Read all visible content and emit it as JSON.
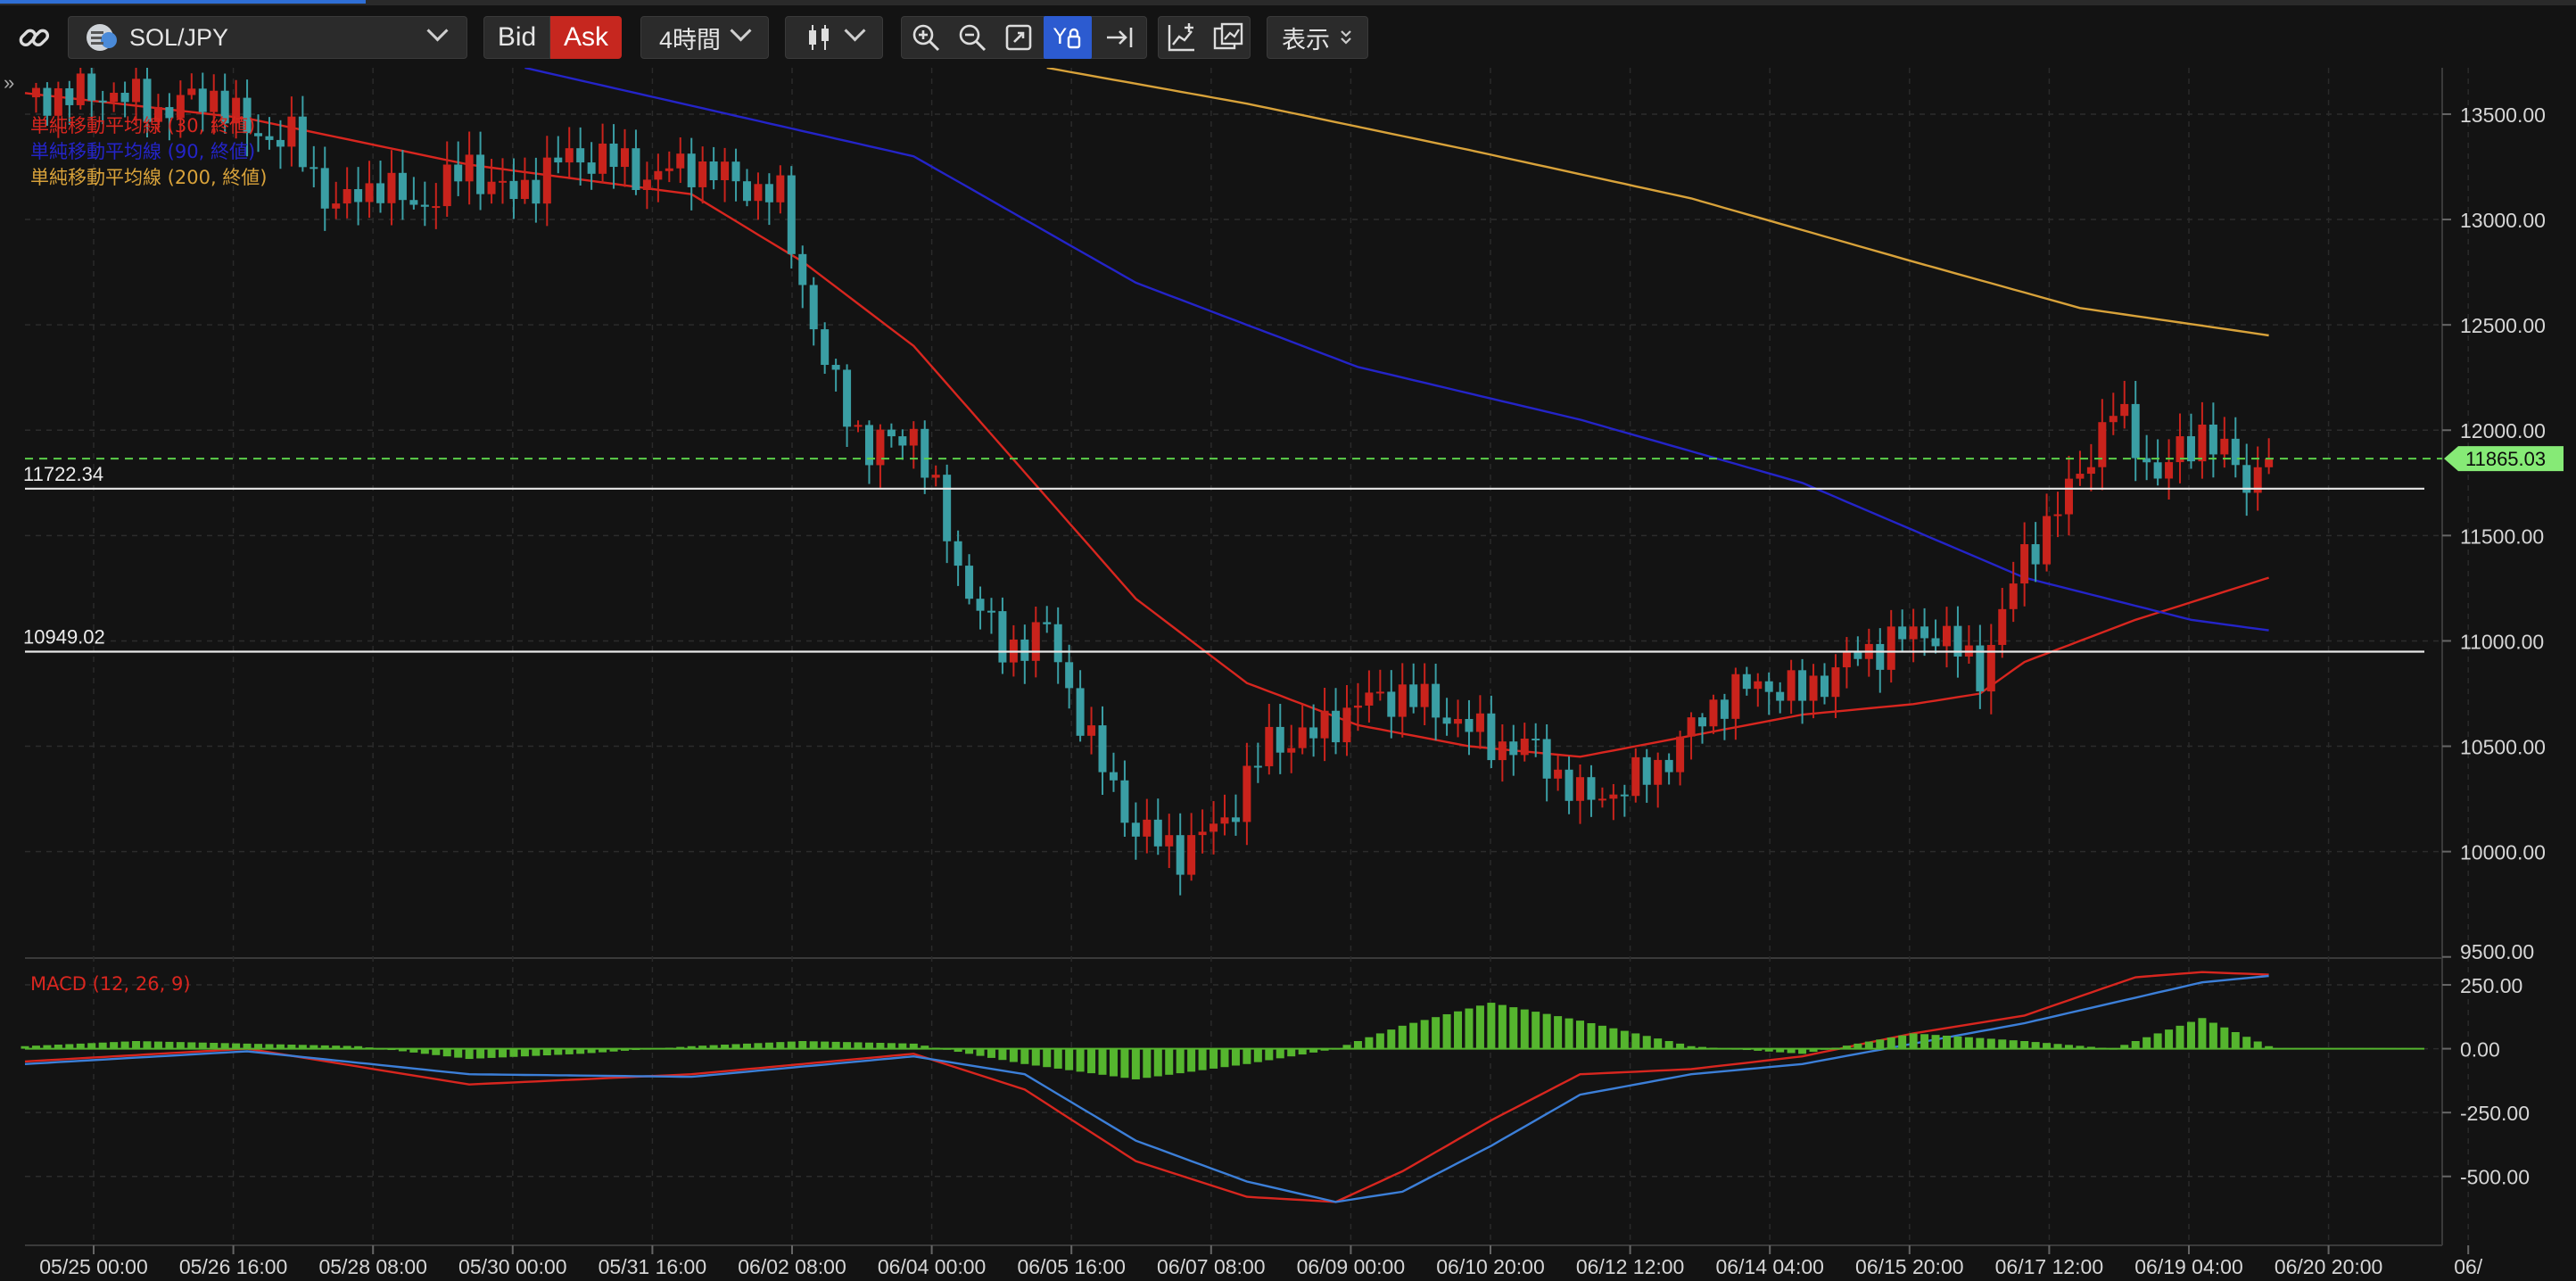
{
  "toolbar": {
    "link_icon": "link-icon",
    "symbol": "SOL/JPY",
    "bid_label": "Bid",
    "ask_label": "Ask",
    "timeframe": "4時間",
    "chart_type_icon": "candlestick-icon",
    "zoom_in_icon": "zoom-in-icon",
    "zoom_out_icon": "zoom-out-icon",
    "fit_icon": "fit-screen-icon",
    "y_lock_icon": "y-axis-lock-icon",
    "scroll_end_icon": "scroll-to-end-icon",
    "add_indicator_icon": "add-indicator-icon",
    "compare_icon": "compare-chart-icon",
    "display_label": "表示"
  },
  "legend": [
    {
      "label": "単純移動平均線 (30, 終値)",
      "color": "#d8261f"
    },
    {
      "label": "単純移動平均線 (90, 終値)",
      "color": "#2424c8"
    },
    {
      "label": "単純移動平均線 (200, 終値)",
      "color": "#d8a23a"
    }
  ],
  "macd_label": "MACD (12, 26, 9)",
  "chart_data": {
    "type": "candlestick",
    "price_axis": {
      "ticks": [
        "13500.00",
        "13000.00",
        "12500.00",
        "12000.00",
        "11500.00",
        "11000.00",
        "10500.00",
        "10000.00",
        "9500.00"
      ],
      "range": [
        9520,
        13720
      ]
    },
    "macd_axis": {
      "ticks": [
        "250.00",
        "0.00",
        "-250.00",
        "-500.00"
      ],
      "range": [
        -700,
        320
      ]
    },
    "time_axis": [
      "05/25 00:00",
      "05/26 16:00",
      "05/28 08:00",
      "05/30 00:00",
      "05/31 16:00",
      "06/02 08:00",
      "06/04 00:00",
      "06/05 16:00",
      "06/07 08:00",
      "06/09 00:00",
      "06/10 20:00",
      "06/12 12:00",
      "06/14 04:00",
      "06/15 20:00",
      "06/17 12:00",
      "06/19 04:00",
      "06/20 20:00",
      "06/"
    ],
    "horizontal_lines": [
      {
        "value": 11722.34,
        "label": "11722.34"
      },
      {
        "value": 10949.02,
        "label": "10949.02"
      }
    ],
    "current_price": {
      "value": 11865.03,
      "label": "11865.03"
    },
    "close_path": [
      [
        0,
        13580
      ],
      [
        8,
        13600
      ],
      [
        12,
        13520
      ],
      [
        17,
        13590
      ],
      [
        20,
        13420
      ],
      [
        24,
        13380
      ],
      [
        28,
        13050
      ],
      [
        32,
        13180
      ],
      [
        35,
        13050
      ],
      [
        40,
        13250
      ],
      [
        44,
        13100
      ],
      [
        48,
        13280
      ],
      [
        52,
        13300
      ],
      [
        56,
        13200
      ],
      [
        60,
        13260
      ],
      [
        64,
        13180
      ],
      [
        68,
        13100
      ],
      [
        72,
        12300
      ],
      [
        76,
        11900
      ],
      [
        80,
        12000
      ],
      [
        84,
        11350
      ],
      [
        88,
        10950
      ],
      [
        92,
        11050
      ],
      [
        96,
        10500
      ],
      [
        100,
        10100
      ],
      [
        104,
        10000
      ],
      [
        108,
        10150
      ],
      [
        112,
        10520
      ],
      [
        116,
        10550
      ],
      [
        120,
        10700
      ],
      [
        124,
        10750
      ],
      [
        128,
        10650
      ],
      [
        132,
        10520
      ],
      [
        136,
        10480
      ],
      [
        140,
        10250
      ],
      [
        144,
        10300
      ],
      [
        148,
        10450
      ],
      [
        152,
        10700
      ],
      [
        156,
        10800
      ],
      [
        160,
        10750
      ],
      [
        164,
        10900
      ],
      [
        168,
        11000
      ],
      [
        172,
        11050
      ],
      [
        176,
        10850
      ],
      [
        180,
        11400
      ],
      [
        184,
        11700
      ],
      [
        188,
        12100
      ],
      [
        192,
        11780
      ],
      [
        196,
        12000
      ],
      [
        200,
        11760
      ],
      [
        202,
        11865
      ]
    ],
    "series": [
      {
        "name": "単純移動平均線 (30, 終値)",
        "color": "#d8261f",
        "points": [
          [
            0,
            13600
          ],
          [
            20,
            13480
          ],
          [
            40,
            13260
          ],
          [
            60,
            13120
          ],
          [
            70,
            12800
          ],
          [
            80,
            12400
          ],
          [
            90,
            11800
          ],
          [
            100,
            11200
          ],
          [
            110,
            10800
          ],
          [
            120,
            10600
          ],
          [
            130,
            10500
          ],
          [
            140,
            10450
          ],
          [
            150,
            10550
          ],
          [
            160,
            10650
          ],
          [
            170,
            10700
          ],
          [
            176,
            10750
          ],
          [
            180,
            10900
          ],
          [
            190,
            11100
          ],
          [
            202,
            11300
          ]
        ]
      },
      {
        "name": "単純移動平均線 (90, 終値)",
        "color": "#2424c8",
        "points": [
          [
            45,
            13720
          ],
          [
            80,
            13300
          ],
          [
            100,
            12700
          ],
          [
            120,
            12300
          ],
          [
            140,
            12050
          ],
          [
            160,
            11750
          ],
          [
            180,
            11300
          ],
          [
            195,
            11100
          ],
          [
            202,
            11050
          ]
        ]
      },
      {
        "name": "単純移動平均線 (200, 終値)",
        "color": "#d8a23a",
        "points": [
          [
            92,
            13720
          ],
          [
            110,
            13550
          ],
          [
            130,
            13330
          ],
          [
            150,
            13100
          ],
          [
            170,
            12800
          ],
          [
            185,
            12580
          ],
          [
            202,
            12450
          ]
        ]
      },
      {
        "name": "MACD",
        "color": "#d8261f",
        "points": [
          [
            0,
            -50
          ],
          [
            20,
            0
          ],
          [
            40,
            -140
          ],
          [
            60,
            -100
          ],
          [
            80,
            -20
          ],
          [
            90,
            -160
          ],
          [
            100,
            -440
          ],
          [
            110,
            -580
          ],
          [
            118,
            -600
          ],
          [
            124,
            -480
          ],
          [
            132,
            -280
          ],
          [
            140,
            -100
          ],
          [
            150,
            -80
          ],
          [
            160,
            -30
          ],
          [
            170,
            60
          ],
          [
            180,
            130
          ],
          [
            190,
            280
          ],
          [
            196,
            300
          ],
          [
            202,
            290
          ]
        ]
      },
      {
        "name": "Signal",
        "color": "#3c7fd8",
        "points": [
          [
            0,
            -60
          ],
          [
            20,
            -10
          ],
          [
            40,
            -100
          ],
          [
            60,
            -110
          ],
          [
            80,
            -30
          ],
          [
            90,
            -100
          ],
          [
            100,
            -360
          ],
          [
            110,
            -520
          ],
          [
            118,
            -600
          ],
          [
            124,
            -560
          ],
          [
            132,
            -380
          ],
          [
            140,
            -180
          ],
          [
            150,
            -100
          ],
          [
            160,
            -60
          ],
          [
            170,
            20
          ],
          [
            180,
            100
          ],
          [
            190,
            200
          ],
          [
            196,
            260
          ],
          [
            202,
            285
          ]
        ]
      },
      {
        "name": "Histogram",
        "color": "#55b52e",
        "points": [
          [
            0,
            10
          ],
          [
            10,
            30
          ],
          [
            20,
            20
          ],
          [
            30,
            10
          ],
          [
            40,
            -40
          ],
          [
            50,
            -20
          ],
          [
            60,
            10
          ],
          [
            70,
            30
          ],
          [
            80,
            20
          ],
          [
            90,
            -60
          ],
          [
            100,
            -120
          ],
          [
            110,
            -60
          ],
          [
            118,
            0
          ],
          [
            124,
            90
          ],
          [
            132,
            180
          ],
          [
            140,
            110
          ],
          [
            150,
            10
          ],
          [
            160,
            -20
          ],
          [
            170,
            60
          ],
          [
            180,
            30
          ],
          [
            188,
            0
          ],
          [
            196,
            120
          ],
          [
            202,
            10
          ]
        ]
      }
    ]
  }
}
